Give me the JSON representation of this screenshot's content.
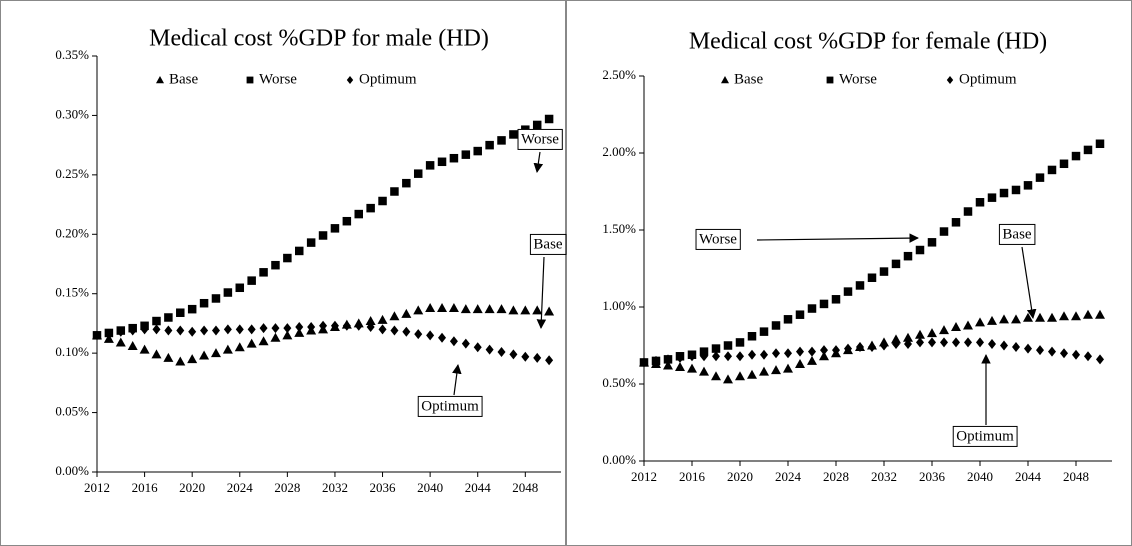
{
  "chart_data": [
    {
      "type": "scatter",
      "title": "Medical cost %GDP for male (HD)",
      "x": [
        2012,
        2013,
        2014,
        2015,
        2016,
        2017,
        2018,
        2019,
        2020,
        2021,
        2022,
        2023,
        2024,
        2025,
        2026,
        2027,
        2028,
        2029,
        2030,
        2031,
        2032,
        2033,
        2034,
        2035,
        2036,
        2037,
        2038,
        2039,
        2040,
        2041,
        2042,
        2043,
        2044,
        2045,
        2046,
        2047,
        2048,
        2049,
        2050
      ],
      "series": [
        {
          "name": "Base",
          "color": "#000000",
          "marker": "triangle",
          "values": [
            0.115,
            0.112,
            0.109,
            0.106,
            0.103,
            0.099,
            0.096,
            0.093,
            0.095,
            0.098,
            0.1,
            0.103,
            0.105,
            0.108,
            0.11,
            0.113,
            0.115,
            0.117,
            0.119,
            0.12,
            0.122,
            0.124,
            0.125,
            0.127,
            0.128,
            0.131,
            0.133,
            0.136,
            0.138,
            0.138,
            0.138,
            0.137,
            0.137,
            0.137,
            0.137,
            0.136,
            0.136,
            0.136,
            0.135
          ]
        },
        {
          "name": "Worse",
          "color": "#000000",
          "marker": "square",
          "values": [
            0.115,
            0.117,
            0.119,
            0.121,
            0.123,
            0.127,
            0.13,
            0.134,
            0.137,
            0.142,
            0.146,
            0.151,
            0.155,
            0.161,
            0.168,
            0.174,
            0.18,
            0.186,
            0.193,
            0.199,
            0.205,
            0.211,
            0.217,
            0.222,
            0.228,
            0.236,
            0.243,
            0.251,
            0.258,
            0.261,
            0.264,
            0.267,
            0.27,
            0.275,
            0.279,
            0.284,
            0.288,
            0.292,
            0.297
          ]
        },
        {
          "name": "Optimum",
          "color": "#000000",
          "marker": "diamond",
          "values": [
            0.115,
            0.116,
            0.118,
            0.119,
            0.12,
            0.12,
            0.119,
            0.119,
            0.118,
            0.119,
            0.119,
            0.12,
            0.12,
            0.12,
            0.121,
            0.121,
            0.121,
            0.122,
            0.122,
            0.123,
            0.123,
            0.123,
            0.123,
            0.122,
            0.12,
            0.119,
            0.118,
            0.116,
            0.115,
            0.113,
            0.11,
            0.108,
            0.105,
            0.103,
            0.101,
            0.099,
            0.097,
            0.096,
            0.094
          ]
        }
      ],
      "xlim": [
        2012,
        2051
      ],
      "xticks": [
        2012,
        2016,
        2020,
        2024,
        2028,
        2032,
        2036,
        2040,
        2044,
        2048
      ],
      "ylim": [
        0,
        0.35
      ],
      "yticks": [
        {
          "value": 0,
          "label": "0.00%"
        },
        {
          "value": 0.05,
          "label": "0.05%"
        },
        {
          "value": 0.1,
          "label": "0.10%"
        },
        {
          "value": 0.15,
          "label": "0.15%"
        },
        {
          "value": 0.2,
          "label": "0.20%"
        },
        {
          "value": 0.25,
          "label": "0.25%"
        },
        {
          "value": 0.3,
          "label": "0.30%"
        },
        {
          "value": 0.35,
          "label": "0.35%"
        }
      ],
      "grid": false,
      "legend": "top",
      "annotations": [
        {
          "text": "Worse"
        },
        {
          "text": "Base"
        },
        {
          "text": "Optimum"
        }
      ]
    },
    {
      "type": "scatter",
      "title": "Medical cost %GDP for female (HD)",
      "x": [
        2012,
        2013,
        2014,
        2015,
        2016,
        2017,
        2018,
        2019,
        2020,
        2021,
        2022,
        2023,
        2024,
        2025,
        2026,
        2027,
        2028,
        2029,
        2030,
        2031,
        2032,
        2033,
        2034,
        2035,
        2036,
        2037,
        2038,
        2039,
        2040,
        2041,
        2042,
        2043,
        2044,
        2045,
        2046,
        2047,
        2048,
        2049,
        2050
      ],
      "series": [
        {
          "name": "Base",
          "color": "#000000",
          "marker": "triangle",
          "values": [
            0.64,
            0.63,
            0.62,
            0.61,
            0.6,
            0.58,
            0.55,
            0.53,
            0.55,
            0.56,
            0.58,
            0.59,
            0.6,
            0.63,
            0.65,
            0.68,
            0.7,
            0.72,
            0.74,
            0.75,
            0.77,
            0.79,
            0.8,
            0.82,
            0.83,
            0.85,
            0.87,
            0.88,
            0.9,
            0.91,
            0.92,
            0.92,
            0.93,
            0.93,
            0.93,
            0.94,
            0.94,
            0.95,
            0.95
          ]
        },
        {
          "name": "Worse",
          "color": "#000000",
          "marker": "square",
          "values": [
            0.64,
            0.65,
            0.66,
            0.68,
            0.69,
            0.71,
            0.73,
            0.75,
            0.77,
            0.81,
            0.84,
            0.88,
            0.92,
            0.95,
            0.99,
            1.02,
            1.05,
            1.1,
            1.14,
            1.19,
            1.23,
            1.28,
            1.33,
            1.37,
            1.42,
            1.49,
            1.55,
            1.62,
            1.68,
            1.71,
            1.74,
            1.76,
            1.79,
            1.84,
            1.89,
            1.93,
            1.98,
            2.02,
            2.06
          ]
        },
        {
          "name": "Optimum",
          "color": "#000000",
          "marker": "diamond",
          "values": [
            0.64,
            0.65,
            0.66,
            0.67,
            0.68,
            0.68,
            0.68,
            0.68,
            0.68,
            0.69,
            0.69,
            0.7,
            0.7,
            0.71,
            0.71,
            0.72,
            0.72,
            0.73,
            0.74,
            0.74,
            0.75,
            0.76,
            0.76,
            0.77,
            0.77,
            0.77,
            0.77,
            0.77,
            0.77,
            0.76,
            0.75,
            0.74,
            0.73,
            0.72,
            0.71,
            0.7,
            0.69,
            0.68,
            0.66
          ]
        }
      ],
      "xlim": [
        2012,
        2051
      ],
      "xticks": [
        2012,
        2016,
        2020,
        2024,
        2028,
        2032,
        2036,
        2040,
        2044,
        2048
      ],
      "ylim": [
        0,
        2.5
      ],
      "yticks": [
        {
          "value": 0,
          "label": "0.00%"
        },
        {
          "value": 0.5,
          "label": "0.50%"
        },
        {
          "value": 1,
          "label": "1.00%"
        },
        {
          "value": 1.5,
          "label": "1.50%"
        },
        {
          "value": 2,
          "label": "2.00%"
        },
        {
          "value": 2.5,
          "label": "2.50%"
        }
      ],
      "grid": false,
      "legend": "top",
      "annotations": [
        {
          "text": "Worse"
        },
        {
          "text": "Base"
        },
        {
          "text": "Optimum"
        }
      ]
    }
  ]
}
